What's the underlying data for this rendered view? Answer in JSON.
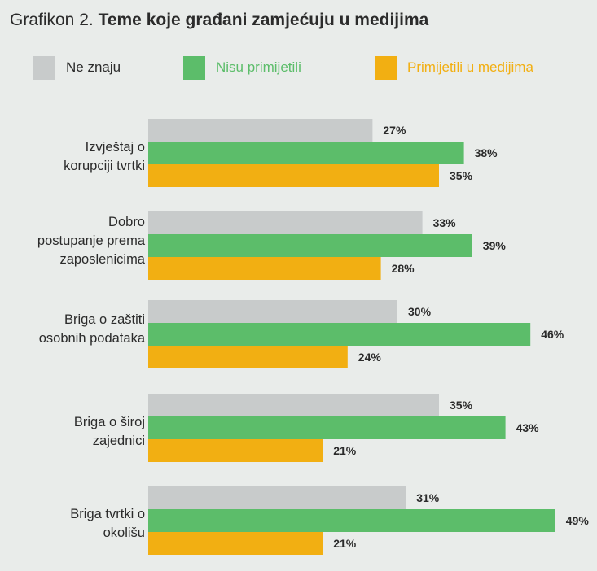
{
  "title": {
    "prefix": "Grafikon 2.",
    "main": "Teme koje građani zamjećuju u medijima"
  },
  "colors": {
    "background": "#e9ecea",
    "ne_znaju": "#c8cbcb",
    "nisu": "#5cbd6a",
    "primijetili": "#f2af12",
    "text": "#2b2b2b"
  },
  "chart_data": {
    "type": "bar",
    "orientation": "horizontal",
    "categories": [
      "Izvještaj o korupciji tvrtki",
      "Dobro postupanje prema zaposlenicima",
      "Briga o zaštiti osobnih podataka",
      "Briga o široj zajednici",
      "Briga tvrtki o okolišu"
    ],
    "category_lines": [
      [
        "Izvještaj o",
        "korupciji tvrtki"
      ],
      [
        "Dobro",
        "postupanje prema",
        "zaposlenicima"
      ],
      [
        "Briga o zaštiti",
        "osobnih podataka"
      ],
      [
        "Briga o široj",
        "zajednici"
      ],
      [
        "Briga tvrtki o",
        "okolišu"
      ]
    ],
    "series": [
      {
        "name": "Ne znaju",
        "values": [
          27,
          33,
          30,
          35,
          31
        ]
      },
      {
        "name": "Nisu primijetili",
        "values": [
          38,
          39,
          46,
          43,
          49
        ]
      },
      {
        "name": "Primijetili u medijima",
        "values": [
          35,
          28,
          24,
          21,
          21
        ]
      }
    ],
    "value_labels": [
      [
        "27%",
        "33%",
        "30%",
        "35%",
        "31%"
      ],
      [
        "38%",
        "39%",
        "46%",
        "43%",
        "49%"
      ],
      [
        "35%",
        "28%",
        "24%",
        "21%",
        "21%"
      ]
    ],
    "legend_position": "top",
    "grid": false
  }
}
